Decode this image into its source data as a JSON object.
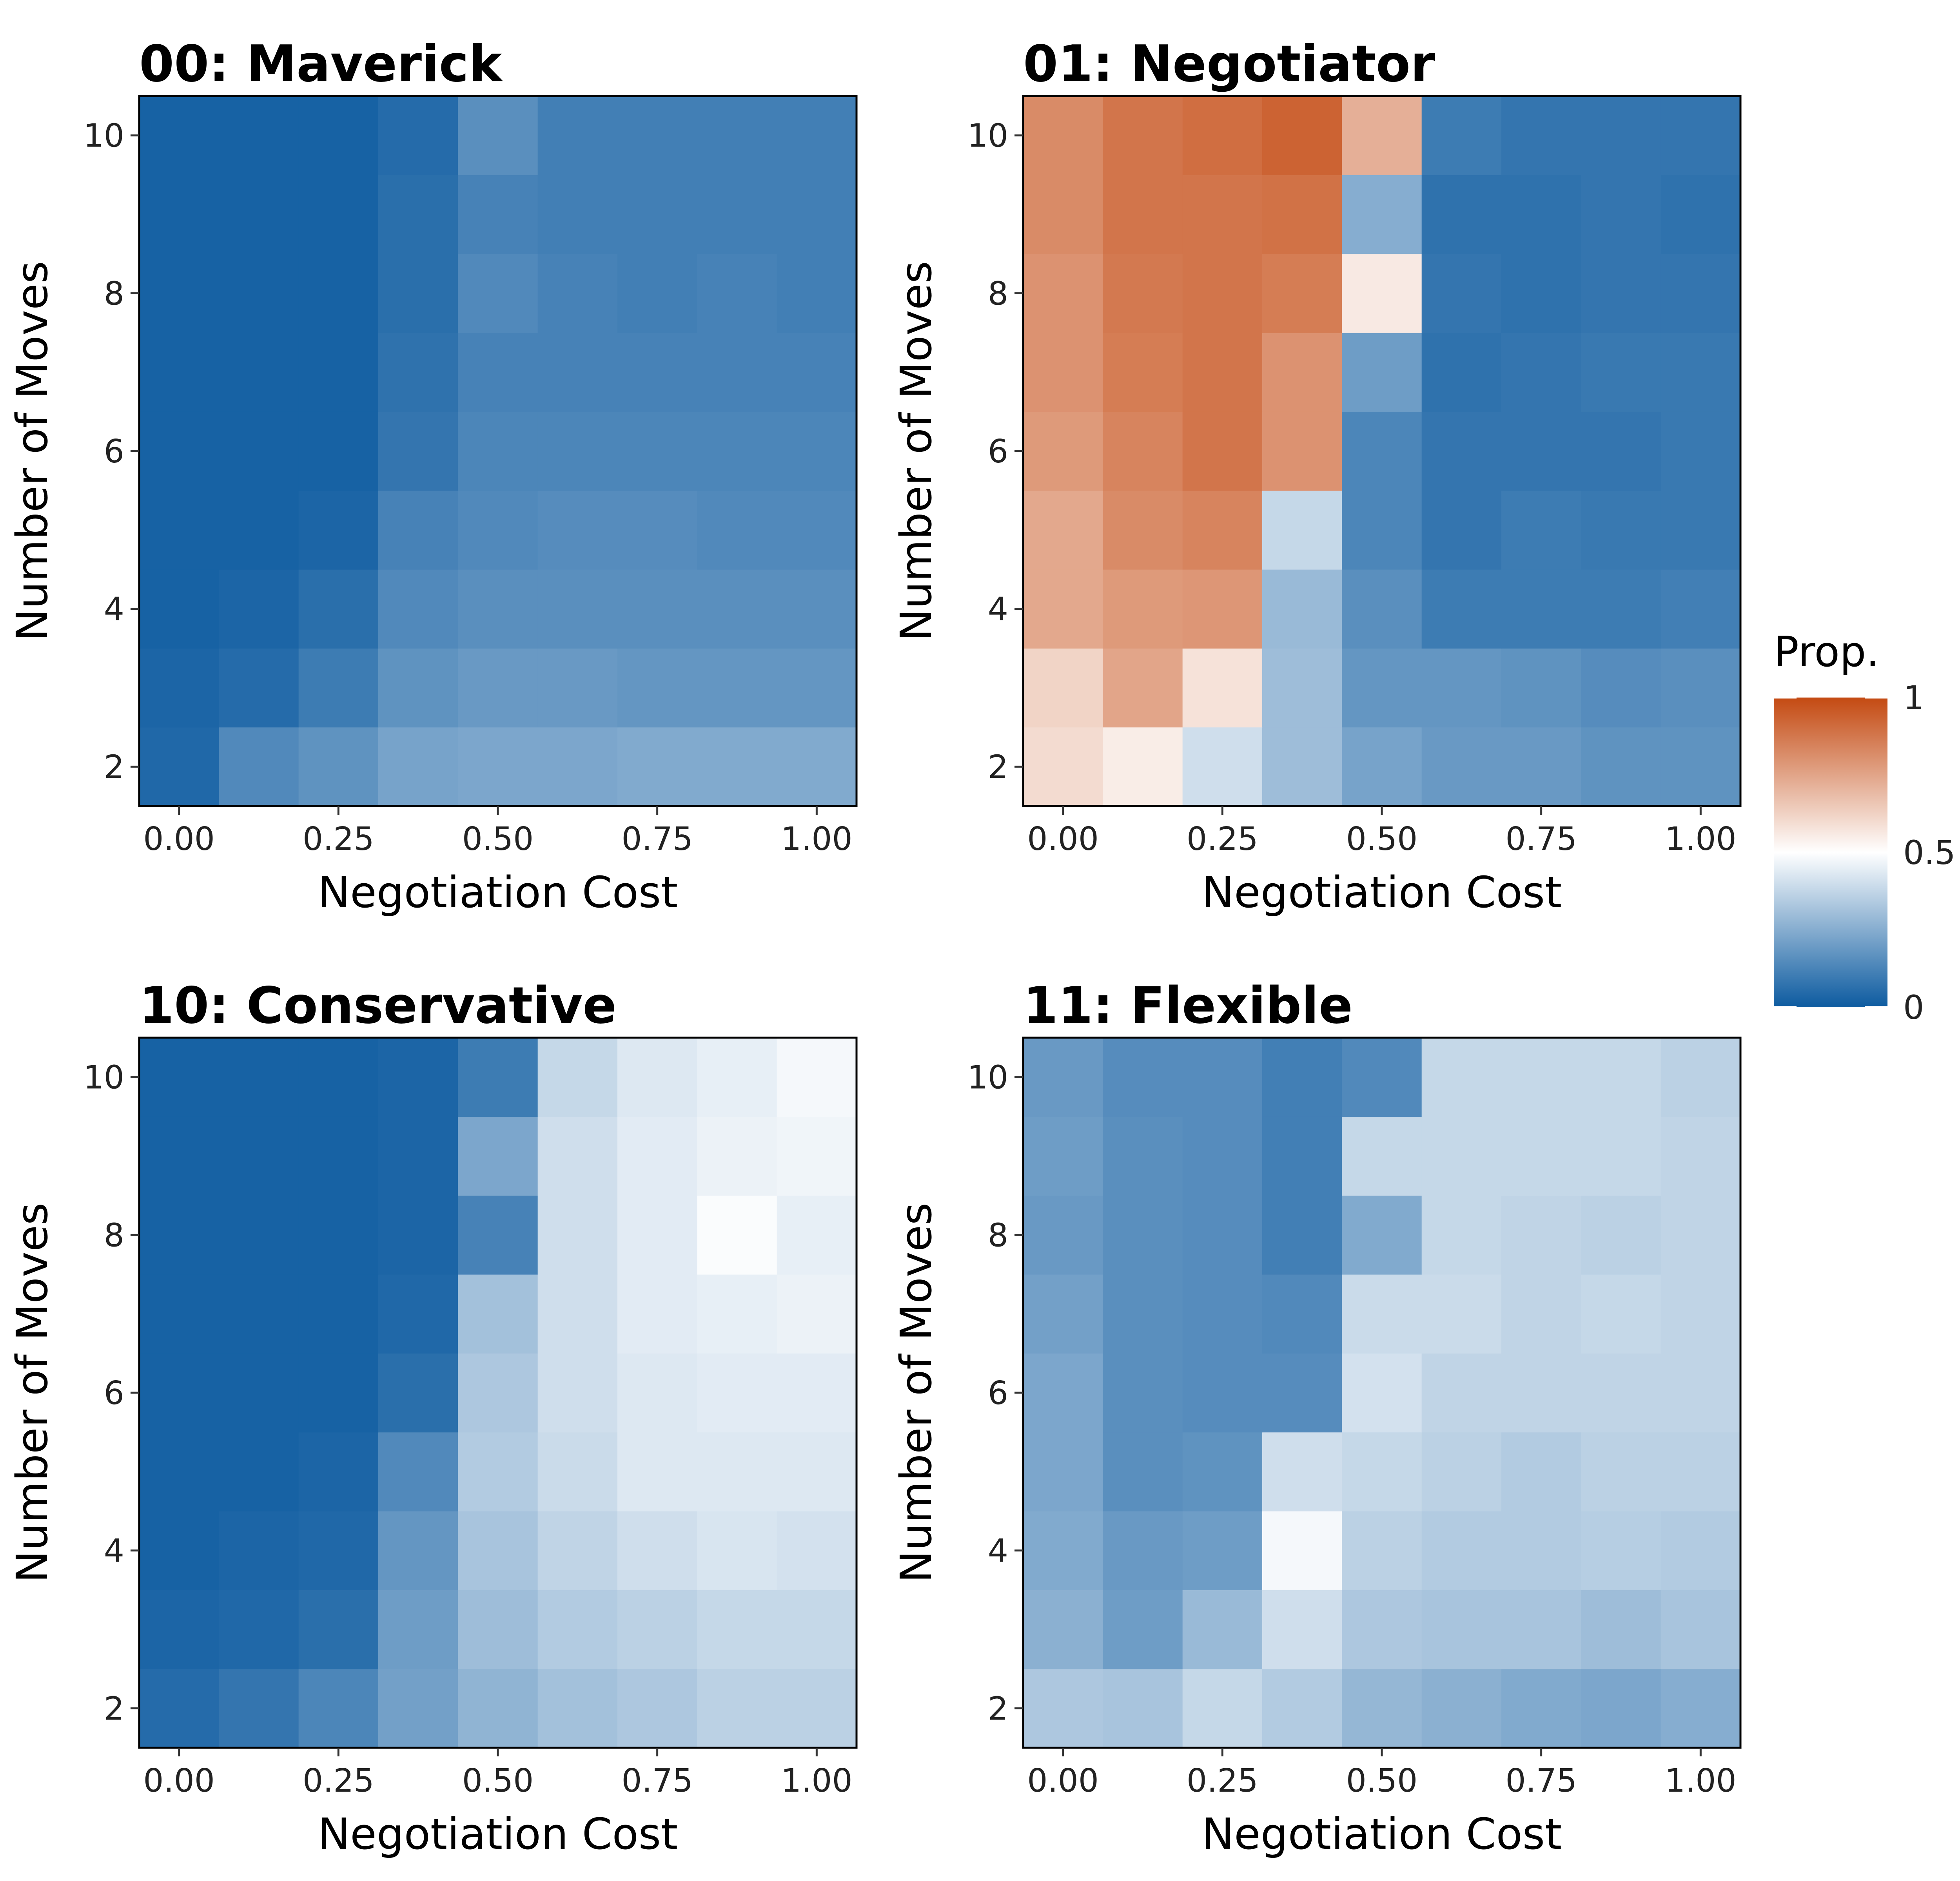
{
  "chart_data": {
    "type": "heatmap",
    "x_values": [
      0.0,
      0.125,
      0.25,
      0.375,
      0.5,
      0.625,
      0.75,
      0.875,
      1.0
    ],
    "y_values": [
      2,
      3,
      4,
      5,
      6,
      7,
      8,
      9,
      10
    ],
    "x_ticks": [
      "0.00",
      "0.25",
      "0.50",
      "0.75",
      "1.00"
    ],
    "y_ticks": [
      "2",
      "4",
      "6",
      "8",
      "10"
    ],
    "xlabel": "Negotiation Cost",
    "ylabel": "Number of Moves",
    "xlim": [
      -0.0625,
      1.0625
    ],
    "ylim": [
      1.5,
      10.5
    ],
    "legend": {
      "title": "Prop.",
      "ticks": [
        "0",
        "0.5",
        "1"
      ],
      "min": 0,
      "mid": 0.5,
      "max": 1,
      "position": "right",
      "colors": {
        "low": "#0d5ba0",
        "mid": "#ffffff",
        "high": "#c44a12"
      }
    },
    "panels": [
      {
        "title": "00: Maverick",
        "z_rows_y2_to_y10": [
          [
            0.04,
            0.14,
            0.17,
            0.22,
            0.23,
            0.23,
            0.24,
            0.24,
            0.24
          ],
          [
            0.03,
            0.05,
            0.1,
            0.17,
            0.19,
            0.19,
            0.18,
            0.18,
            0.18
          ],
          [
            0.02,
            0.03,
            0.06,
            0.14,
            0.16,
            0.16,
            0.16,
            0.16,
            0.16
          ],
          [
            0.02,
            0.02,
            0.03,
            0.12,
            0.14,
            0.15,
            0.15,
            0.14,
            0.14
          ],
          [
            0.02,
            0.02,
            0.02,
            0.08,
            0.13,
            0.13,
            0.13,
            0.13,
            0.13
          ],
          [
            0.02,
            0.02,
            0.02,
            0.07,
            0.12,
            0.12,
            0.12,
            0.12,
            0.12
          ],
          [
            0.02,
            0.02,
            0.02,
            0.06,
            0.14,
            0.12,
            0.11,
            0.12,
            0.11
          ],
          [
            0.02,
            0.02,
            0.02,
            0.06,
            0.12,
            0.11,
            0.11,
            0.11,
            0.11
          ],
          [
            0.02,
            0.02,
            0.02,
            0.05,
            0.16,
            0.11,
            0.11,
            0.11,
            0.11
          ]
        ]
      },
      {
        "title": "01: Negotiator",
        "z_rows_y2_to_y10": [
          [
            0.6,
            0.55,
            0.4,
            0.3,
            0.22,
            0.19,
            0.19,
            0.17,
            0.17
          ],
          [
            0.62,
            0.75,
            0.58,
            0.3,
            0.18,
            0.18,
            0.17,
            0.15,
            0.16
          ],
          [
            0.74,
            0.78,
            0.79,
            0.29,
            0.16,
            0.1,
            0.1,
            0.1,
            0.11
          ],
          [
            0.74,
            0.82,
            0.84,
            0.38,
            0.13,
            0.08,
            0.1,
            0.09,
            0.09
          ],
          [
            0.78,
            0.84,
            0.88,
            0.8,
            0.13,
            0.08,
            0.08,
            0.08,
            0.09
          ],
          [
            0.8,
            0.86,
            0.88,
            0.8,
            0.2,
            0.07,
            0.08,
            0.09,
            0.09
          ],
          [
            0.8,
            0.87,
            0.88,
            0.86,
            0.56,
            0.08,
            0.07,
            0.08,
            0.08
          ],
          [
            0.82,
            0.88,
            0.88,
            0.89,
            0.25,
            0.07,
            0.07,
            0.08,
            0.07
          ],
          [
            0.82,
            0.88,
            0.9,
            0.93,
            0.72,
            0.1,
            0.08,
            0.08,
            0.08
          ]
        ]
      },
      {
        "title": "10: Conservative",
        "z_rows_y2_to_y10": [
          [
            0.05,
            0.08,
            0.13,
            0.21,
            0.27,
            0.31,
            0.33,
            0.36,
            0.36
          ],
          [
            0.03,
            0.04,
            0.06,
            0.2,
            0.3,
            0.34,
            0.36,
            0.38,
            0.38
          ],
          [
            0.02,
            0.03,
            0.04,
            0.18,
            0.32,
            0.37,
            0.4,
            0.42,
            0.41
          ],
          [
            0.02,
            0.02,
            0.03,
            0.14,
            0.34,
            0.39,
            0.43,
            0.43,
            0.43
          ],
          [
            0.02,
            0.02,
            0.02,
            0.06,
            0.33,
            0.4,
            0.43,
            0.44,
            0.44
          ],
          [
            0.02,
            0.02,
            0.02,
            0.04,
            0.31,
            0.4,
            0.44,
            0.45,
            0.46
          ],
          [
            0.02,
            0.02,
            0.02,
            0.03,
            0.12,
            0.4,
            0.44,
            0.49,
            0.45
          ],
          [
            0.02,
            0.02,
            0.02,
            0.03,
            0.23,
            0.4,
            0.44,
            0.46,
            0.47
          ],
          [
            0.02,
            0.02,
            0.02,
            0.03,
            0.1,
            0.38,
            0.43,
            0.45,
            0.48
          ]
        ]
      },
      {
        "title": "11: Flexible",
        "z_rows_y2_to_y10": [
          [
            0.33,
            0.32,
            0.38,
            0.34,
            0.28,
            0.26,
            0.24,
            0.23,
            0.25
          ],
          [
            0.26,
            0.2,
            0.29,
            0.4,
            0.33,
            0.32,
            0.32,
            0.3,
            0.32
          ],
          [
            0.24,
            0.19,
            0.2,
            0.48,
            0.36,
            0.34,
            0.34,
            0.35,
            0.34
          ],
          [
            0.23,
            0.16,
            0.17,
            0.4,
            0.38,
            0.36,
            0.34,
            0.36,
            0.36
          ],
          [
            0.23,
            0.16,
            0.15,
            0.15,
            0.41,
            0.37,
            0.37,
            0.37,
            0.37
          ],
          [
            0.21,
            0.16,
            0.15,
            0.14,
            0.39,
            0.39,
            0.37,
            0.38,
            0.37
          ],
          [
            0.19,
            0.16,
            0.15,
            0.11,
            0.24,
            0.38,
            0.37,
            0.36,
            0.37
          ],
          [
            0.2,
            0.16,
            0.15,
            0.11,
            0.38,
            0.38,
            0.38,
            0.38,
            0.37
          ],
          [
            0.19,
            0.15,
            0.15,
            0.11,
            0.14,
            0.38,
            0.38,
            0.38,
            0.36
          ]
        ]
      }
    ]
  }
}
